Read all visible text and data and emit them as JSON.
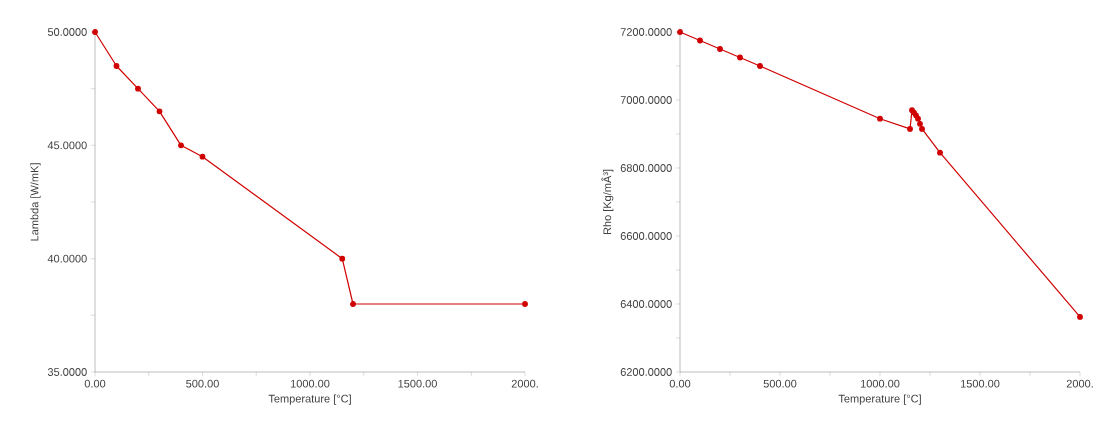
{
  "chart_data": [
    {
      "type": "line",
      "xlabel": "Temperature [°C]",
      "ylabel": "Lambda [W/mK]",
      "x": [
        0,
        100,
        200,
        300,
        400,
        500,
        1150,
        1200,
        2000
      ],
      "series": [
        {
          "color": "#d00000",
          "values": [
            50,
            48.5,
            47.5,
            46.5,
            45,
            44.5,
            40,
            38,
            38
          ]
        }
      ],
      "marker": "circle",
      "line_style": "solid",
      "xlim": [
        0,
        2000
      ],
      "ylim": [
        35,
        50
      ],
      "xticks": [
        {
          "value": 0,
          "label": "0.00"
        },
        {
          "value": 250,
          "label": null
        },
        {
          "value": 500,
          "label": "500.00"
        },
        {
          "value": 750,
          "label": null
        },
        {
          "value": 1000,
          "label": "1000.00"
        },
        {
          "value": 1250,
          "label": null
        },
        {
          "value": 1500,
          "label": "1500.00"
        },
        {
          "value": 1750,
          "label": null
        },
        {
          "value": 2000,
          "label": "2000."
        }
      ],
      "yticks": [
        {
          "value": 35,
          "label": "35.0000"
        },
        {
          "value": 37.5,
          "label": null
        },
        {
          "value": 40,
          "label": "40.0000"
        },
        {
          "value": 42.5,
          "label": null
        },
        {
          "value": 45,
          "label": "45.0000"
        },
        {
          "value": 47.5,
          "label": null
        },
        {
          "value": 50,
          "label": "50.0000"
        }
      ]
    },
    {
      "type": "line",
      "xlabel": "Temperature [°C]",
      "ylabel": "Rho [Kg/mÂ³]",
      "x": [
        0,
        100,
        200,
        300,
        400,
        1000,
        1150,
        1160,
        1170,
        1180,
        1190,
        1200,
        1210,
        1300,
        2000
      ],
      "series": [
        {
          "color": "#d00000",
          "values": [
            7200,
            7175,
            7150,
            7125,
            7100,
            6945,
            6915,
            6970,
            6963,
            6955,
            6945,
            6930,
            6915,
            6845,
            6362
          ]
        }
      ],
      "marker": "circle",
      "line_style": "solid",
      "xlim": [
        0,
        2000
      ],
      "ylim": [
        6200,
        7200
      ],
      "xticks": [
        {
          "value": 0,
          "label": "0.00"
        },
        {
          "value": 250,
          "label": null
        },
        {
          "value": 500,
          "label": "500.00"
        },
        {
          "value": 750,
          "label": null
        },
        {
          "value": 1000,
          "label": "1000.00"
        },
        {
          "value": 1250,
          "label": null
        },
        {
          "value": 1500,
          "label": "1500.00"
        },
        {
          "value": 1750,
          "label": null
        },
        {
          "value": 2000,
          "label": "2000."
        }
      ],
      "yticks": [
        {
          "value": 6200,
          "label": "6200.0000"
        },
        {
          "value": 6300,
          "label": null
        },
        {
          "value": 6400,
          "label": "6400.0000"
        },
        {
          "value": 6500,
          "label": null
        },
        {
          "value": 6600,
          "label": "6600.0000"
        },
        {
          "value": 6700,
          "label": null
        },
        {
          "value": 6800,
          "label": "6800.0000"
        },
        {
          "value": 6900,
          "label": null
        },
        {
          "value": 7000,
          "label": "7000.0000"
        },
        {
          "value": 7100,
          "label": null
        },
        {
          "value": 7200,
          "label": "7200.0000"
        }
      ]
    }
  ]
}
